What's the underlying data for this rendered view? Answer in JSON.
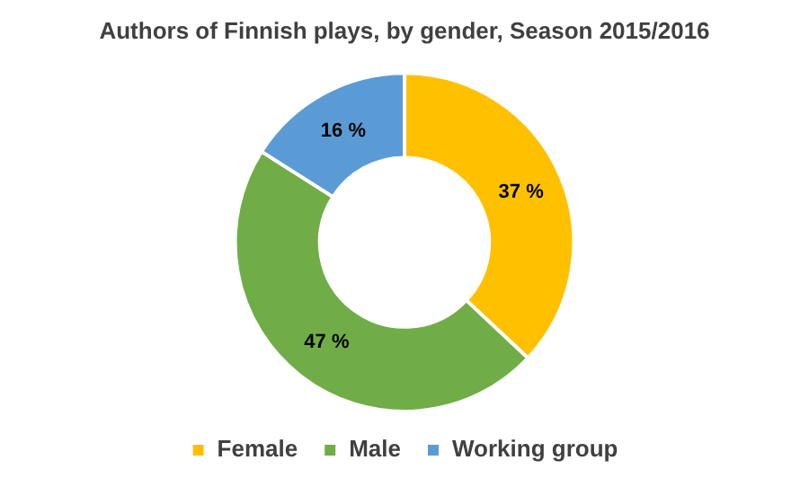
{
  "chart_data": {
    "type": "donut",
    "title": "Authors of Finnish plays, by gender, Season 2015/2016",
    "categories": [
      "Female",
      "Male",
      "Working group"
    ],
    "values": [
      37,
      47,
      16
    ],
    "colors": [
      "#ffc000",
      "#70ad47",
      "#5b9bd5"
    ],
    "value_labels": [
      "37 %",
      "47 %",
      "16 %"
    ],
    "legend": "bottom"
  }
}
